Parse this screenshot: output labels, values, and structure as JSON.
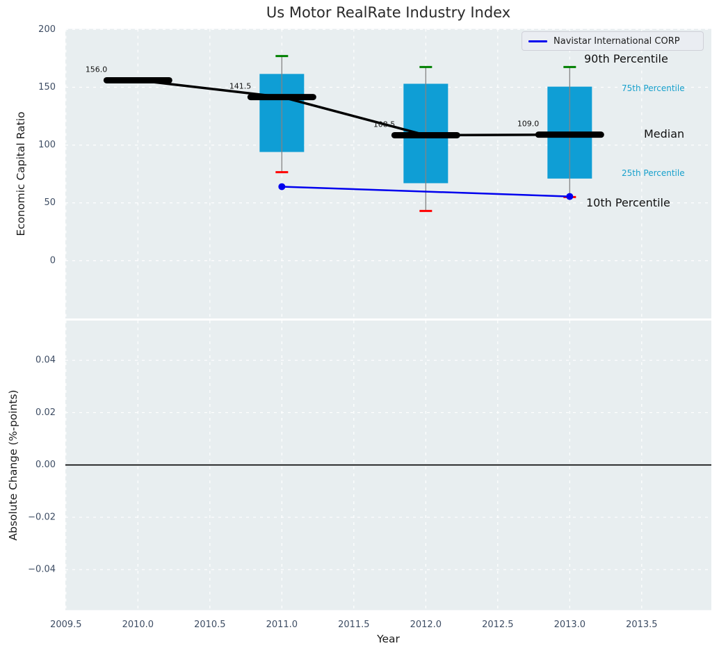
{
  "title": "Us Motor RealRate Industry Index",
  "legend": {
    "series_label": "Navistar International CORP",
    "line_color": "#0000ee",
    "position": "upper right"
  },
  "annotations": {
    "p90": "90th Percentile",
    "p75": "75th Percentile",
    "median": "Median",
    "p25": "25th Percentile",
    "p10": "10th Percentile"
  },
  "colors": {
    "box_fill": "#0f9ed5",
    "cap_high": "#008000",
    "cap_low": "#ff0000",
    "median_line": "#000000",
    "series_line": "#0000ee",
    "whisker": "#848484",
    "plot_bg": "#e8eef0",
    "grid": "#ffffff",
    "tick_text": "#3d4c63",
    "cyan_label_text": "#17a0cc",
    "zero_line": "#000000"
  },
  "chart_data": [
    {
      "type": "boxplot+line",
      "title": "Us Motor RealRate Industry Index",
      "ylabel": "Economic Capital Ratio",
      "xlabel": "Year",
      "xlim": [
        2009.496,
        2013.984
      ],
      "ylim": [
        -50,
        200.5
      ],
      "xticks": [
        2009.5,
        2010.0,
        2010.5,
        2011.0,
        2011.5,
        2012.0,
        2012.5,
        2013.0,
        2013.5
      ],
      "xtick_labels": [
        "2009.5",
        "2010.0",
        "2010.5",
        "2011.0",
        "2011.5",
        "2012.0",
        "2012.5",
        "2013.0",
        "2013.5"
      ],
      "yticks": [
        0,
        50,
        100,
        150,
        200
      ],
      "ytick_labels": [
        "0",
        "50",
        "100",
        "150",
        "200"
      ],
      "grid": true,
      "legend_position": "upper right",
      "boxes": {
        "years": [
          2010,
          2011,
          2012,
          2013
        ],
        "median": [
          156.0,
          141.5,
          108.5,
          109.0
        ],
        "median_labels": [
          "156.0",
          "141.5",
          "108.5",
          "109.0"
        ],
        "p75": [
          null,
          161.5,
          153.0,
          150.5
        ],
        "p25": [
          null,
          94.0,
          67.0,
          71.0
        ],
        "p90": [
          null,
          177.0,
          167.5,
          167.5
        ],
        "p10": [
          null,
          76.5,
          43.0,
          55.0
        ]
      },
      "series": [
        {
          "name": "Navistar International CORP",
          "x": [
            2011,
            2013
          ],
          "y": [
            64.0,
            55.5
          ],
          "color": "#0000ee",
          "marker": "circle"
        }
      ]
    },
    {
      "type": "line",
      "title": "",
      "ylabel": "Absolute Change (%-points)",
      "xlabel": "Year",
      "xlim": [
        2009.496,
        2013.984
      ],
      "ylim": [
        -0.0555,
        0.0552
      ],
      "xticks": [
        2009.5,
        2010.0,
        2010.5,
        2011.0,
        2011.5,
        2012.0,
        2012.5,
        2013.0,
        2013.5
      ],
      "xtick_labels": [
        "2009.5",
        "2010.0",
        "2010.5",
        "2011.0",
        "2011.5",
        "2012.0",
        "2012.5",
        "2013.0",
        "2013.5"
      ],
      "yticks": [
        0.04,
        0.02,
        0.0,
        -0.02,
        -0.04
      ],
      "ytick_labels": [
        "0.04",
        "0.02",
        "0.00",
        "−0.02",
        "−0.04"
      ],
      "grid": true,
      "zero_line": 0.0,
      "series": []
    }
  ]
}
